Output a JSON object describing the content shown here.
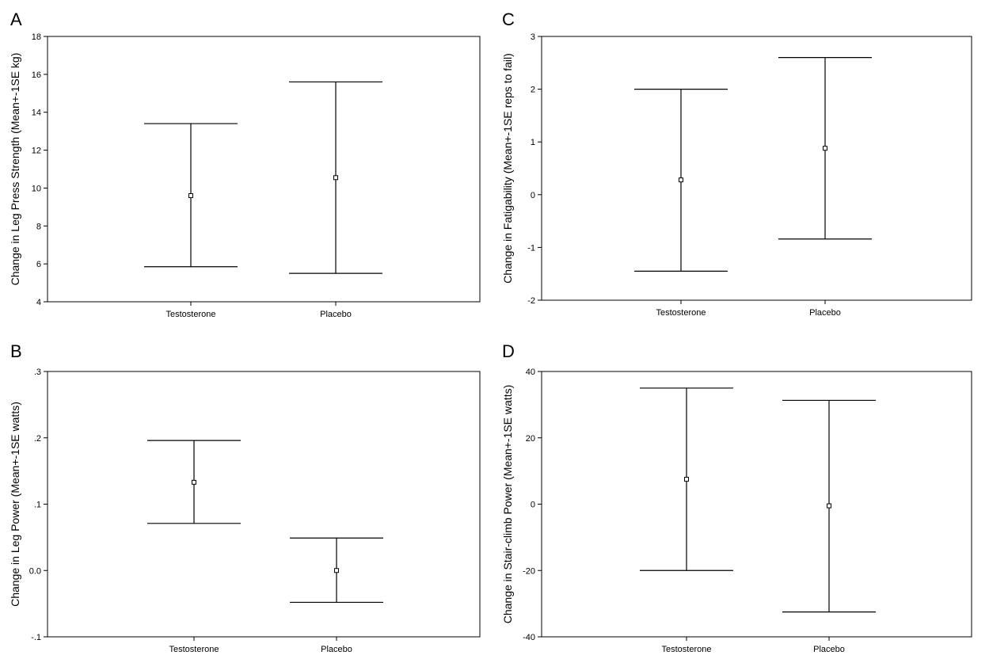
{
  "chart_data": [
    {
      "id": "A",
      "type": "errorbar",
      "panel_label": "A",
      "ylabel": "Change in Leg Press Strength (Mean+-1SE kg)",
      "categories": [
        "Testosterone",
        "Placebo"
      ],
      "ylim": [
        4,
        18
      ],
      "yticks": [
        4,
        6,
        8,
        10,
        12,
        14,
        16,
        18
      ],
      "ytick_labels": [
        "4",
        "6",
        "8",
        "10",
        "12",
        "14",
        "16",
        "18"
      ],
      "mean": [
        9.6,
        10.55
      ],
      "lower": [
        5.85,
        5.5
      ],
      "upper": [
        13.4,
        15.6
      ]
    },
    {
      "id": "B",
      "type": "errorbar",
      "panel_label": "B",
      "ylabel": "Change in Leg Power (Mean+-1SE watts)",
      "categories": [
        "Testosterone",
        "Placebo"
      ],
      "ylim": [
        -0.1,
        0.3
      ],
      "yticks": [
        -0.1,
        0.0,
        0.1,
        0.2,
        0.3
      ],
      "ytick_labels": [
        "-.1",
        "0.0",
        ".1",
        ".2",
        ".3"
      ],
      "mean": [
        0.133,
        0.0
      ],
      "lower": [
        0.071,
        -0.048
      ],
      "upper": [
        0.196,
        0.049
      ]
    },
    {
      "id": "C",
      "type": "errorbar",
      "panel_label": "C",
      "ylabel": "Change in Fatigability (Mean+-1SE reps to fail)",
      "categories": [
        "Testosterone",
        "Placebo"
      ],
      "ylim": [
        -2,
        3
      ],
      "yticks": [
        -2,
        -1,
        0,
        1,
        2,
        3
      ],
      "ytick_labels": [
        "-2",
        "-1",
        "0",
        "1",
        "2",
        "3"
      ],
      "mean": [
        0.28,
        0.88
      ],
      "lower": [
        -1.45,
        -0.84
      ],
      "upper": [
        2.0,
        2.6
      ]
    },
    {
      "id": "D",
      "type": "errorbar",
      "panel_label": "D",
      "ylabel": "Change in Stair-climb Power (Mean+-1SE watts)",
      "categories": [
        "Testosterone",
        "Placebo"
      ],
      "ylim": [
        -40,
        40
      ],
      "yticks": [
        -40,
        -20,
        0,
        20,
        40
      ],
      "ytick_labels": [
        "-40",
        "-20",
        "0",
        "20",
        "40"
      ],
      "mean": [
        7.5,
        -0.5
      ],
      "lower": [
        -20.0,
        -32.5
      ],
      "upper": [
        35.0,
        31.3
      ]
    }
  ]
}
